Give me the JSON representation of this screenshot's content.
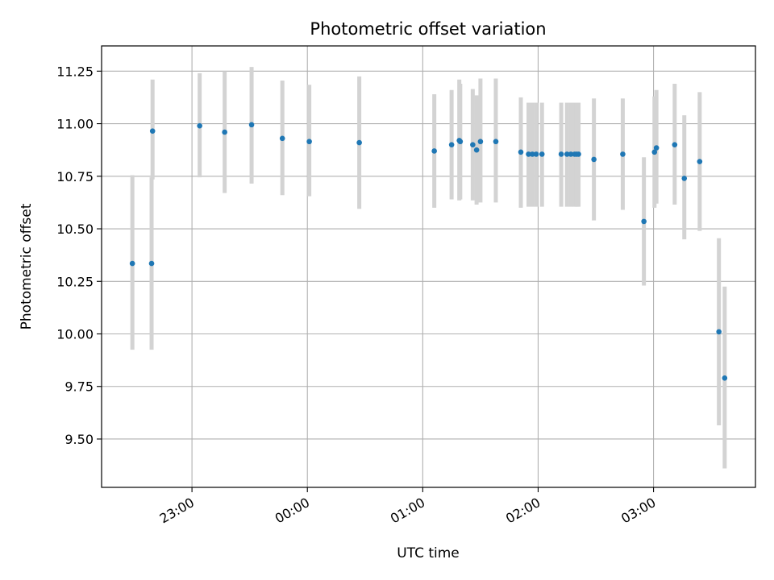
{
  "chart_data": {
    "type": "scatter",
    "title": "Photometric offset variation",
    "xlabel": "UTC time",
    "ylabel": "Photometric offset",
    "x_unit": "minutes relative to 00:00 UTC",
    "xlim": [
      -107,
      233
    ],
    "ylim": [
      9.27,
      11.37
    ],
    "grid": true,
    "legend": "none",
    "x_ticks": [
      {
        "value": -60,
        "label": "23:00"
      },
      {
        "value": 0,
        "label": "00:00"
      },
      {
        "value": 60,
        "label": "01:00"
      },
      {
        "value": 120,
        "label": "02:00"
      },
      {
        "value": 180,
        "label": "03:00"
      }
    ],
    "y_ticks": [
      {
        "value": 9.5,
        "label": "9.50"
      },
      {
        "value": 9.75,
        "label": "9.75"
      },
      {
        "value": 10.0,
        "label": "10.00"
      },
      {
        "value": 10.25,
        "label": "10.25"
      },
      {
        "value": 10.5,
        "label": "10.50"
      },
      {
        "value": 10.75,
        "label": "10.75"
      },
      {
        "value": 11.0,
        "label": "11.00"
      },
      {
        "value": 11.25,
        "label": "11.25"
      }
    ],
    "colors": {
      "point": "#1f77b4",
      "errorbar": "#d3d3d3",
      "grid": "#b0b0b0"
    },
    "points": [
      {
        "x": -91,
        "y": 10.335,
        "low": 9.925,
        "high": 10.755
      },
      {
        "x": -81,
        "y": 10.335,
        "low": 9.925,
        "high": 10.745
      },
      {
        "x": -80.5,
        "y": 10.965,
        "low": 10.735,
        "high": 11.21
      },
      {
        "x": -56,
        "y": 10.99,
        "low": 10.745,
        "high": 11.24
      },
      {
        "x": -43,
        "y": 10.96,
        "low": 10.67,
        "high": 11.25
      },
      {
        "x": -29,
        "y": 10.995,
        "low": 10.715,
        "high": 11.27
      },
      {
        "x": -13,
        "y": 10.93,
        "low": 10.66,
        "high": 11.205
      },
      {
        "x": 1,
        "y": 10.915,
        "low": 10.655,
        "high": 11.185
      },
      {
        "x": 27,
        "y": 10.91,
        "low": 10.595,
        "high": 11.225
      },
      {
        "x": 66,
        "y": 10.87,
        "low": 10.6,
        "high": 11.14
      },
      {
        "x": 75,
        "y": 10.9,
        "low": 10.64,
        "high": 11.16
      },
      {
        "x": 79,
        "y": 10.92,
        "low": 10.635,
        "high": 11.21
      },
      {
        "x": 79.5,
        "y": 10.915,
        "low": 10.64,
        "high": 11.19
      },
      {
        "x": 86,
        "y": 10.9,
        "low": 10.635,
        "high": 11.165
      },
      {
        "x": 88,
        "y": 10.875,
        "low": 10.615,
        "high": 11.135
      },
      {
        "x": 90,
        "y": 10.915,
        "low": 10.625,
        "high": 11.215
      },
      {
        "x": 98,
        "y": 10.915,
        "low": 10.625,
        "high": 11.215
      },
      {
        "x": 111,
        "y": 10.865,
        "low": 10.6,
        "high": 11.125
      },
      {
        "x": 115,
        "y": 10.855,
        "low": 10.605,
        "high": 11.1
      },
      {
        "x": 117,
        "y": 10.855,
        "low": 10.605,
        "high": 11.1
      },
      {
        "x": 119,
        "y": 10.855,
        "low": 10.605,
        "high": 11.1
      },
      {
        "x": 122,
        "y": 10.855,
        "low": 10.605,
        "high": 11.1
      },
      {
        "x": 132,
        "y": 10.855,
        "low": 10.605,
        "high": 11.1
      },
      {
        "x": 135,
        "y": 10.855,
        "low": 10.605,
        "high": 11.1
      },
      {
        "x": 137,
        "y": 10.855,
        "low": 10.605,
        "high": 11.1
      },
      {
        "x": 139,
        "y": 10.855,
        "low": 10.605,
        "high": 11.1
      },
      {
        "x": 140,
        "y": 10.855,
        "low": 10.605,
        "high": 11.1
      },
      {
        "x": 141,
        "y": 10.855,
        "low": 10.605,
        "high": 11.1
      },
      {
        "x": 149,
        "y": 10.83,
        "low": 10.54,
        "high": 11.12
      },
      {
        "x": 164,
        "y": 10.855,
        "low": 10.59,
        "high": 11.12
      },
      {
        "x": 175,
        "y": 10.535,
        "low": 10.23,
        "high": 10.84
      },
      {
        "x": 180.5,
        "y": 10.865,
        "low": 10.6,
        "high": 11.13
      },
      {
        "x": 181.5,
        "y": 10.885,
        "low": 10.62,
        "high": 11.16
      },
      {
        "x": 191,
        "y": 10.9,
        "low": 10.615,
        "high": 11.19
      },
      {
        "x": 196,
        "y": 10.74,
        "low": 10.45,
        "high": 11.04
      },
      {
        "x": 204,
        "y": 10.82,
        "low": 10.49,
        "high": 11.15
      },
      {
        "x": 214,
        "y": 10.01,
        "low": 9.565,
        "high": 10.455
      },
      {
        "x": 217,
        "y": 9.79,
        "low": 9.36,
        "high": 10.225
      }
    ]
  }
}
